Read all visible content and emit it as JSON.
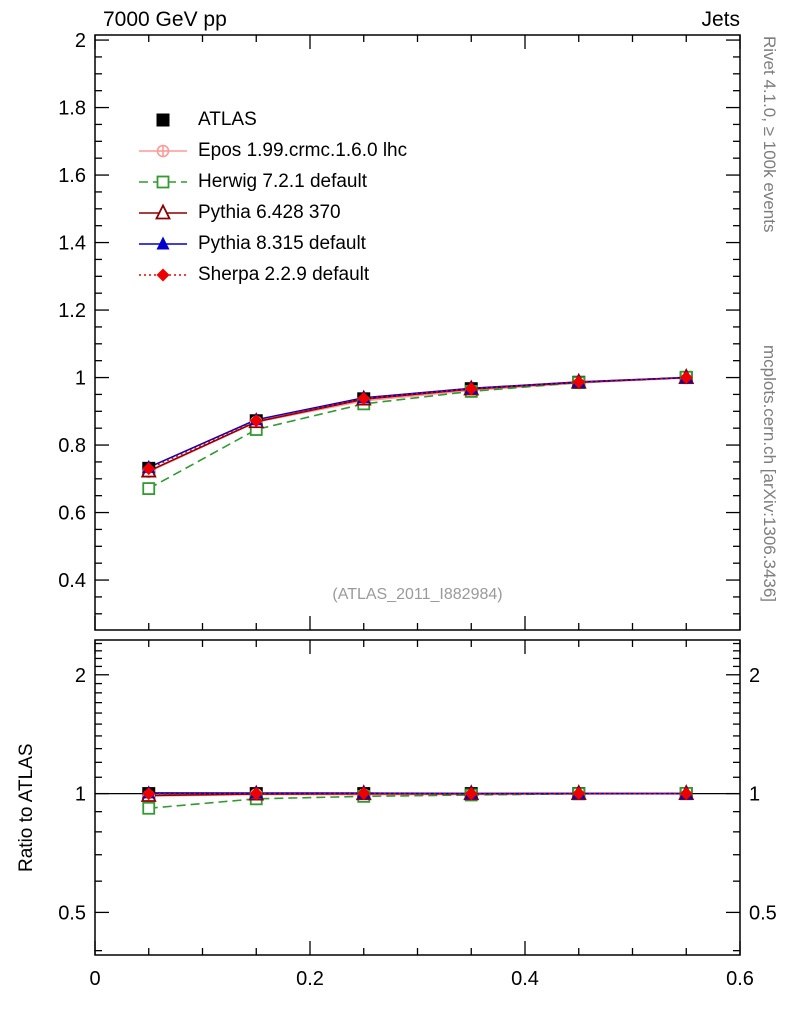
{
  "header": {
    "left_title": "7000 GeV pp",
    "right_title": "Jets"
  },
  "side_labels": {
    "top": "Rivet 4.1.0, ≥ 100k events",
    "bottom": "mcplots.cern.ch [arXiv:1306.3436]"
  },
  "watermark": "(ATLAS_2011_I882984)",
  "chart_data": {
    "type": "line",
    "x": [
      0.05,
      0.15,
      0.25,
      0.35,
      0.45,
      0.55
    ],
    "xlim": [
      0,
      0.6
    ],
    "xticks": [
      0,
      0.2,
      0.4,
      0.6
    ],
    "xtick_labels": [
      "0",
      "0.2",
      "0.4",
      "0.6"
    ],
    "x_minor_step": 0.05,
    "grid": "off",
    "legend_position": "upper-left",
    "main_panel": {
      "ylim": [
        0.252,
        2.015
      ],
      "yticks": [
        0.4,
        0.6,
        0.8,
        1.0,
        1.2,
        1.4,
        1.6,
        1.8,
        2.0
      ],
      "ytick_labels": [
        "0.4",
        "0.6",
        "0.8",
        "1",
        "1.2",
        "1.4",
        "1.6",
        "1.8",
        "2"
      ],
      "y_minor_step": 0.05
    },
    "ratio_panel": {
      "ylabel": "Ratio to ATLAS",
      "yscale": "log",
      "ylim": [
        0.39,
        2.45
      ],
      "yticks": [
        0.5,
        1,
        2
      ],
      "ytick_labels": [
        "0.5",
        "1",
        "2"
      ],
      "y_minors": [
        0.4,
        0.6,
        0.7,
        0.8,
        0.9,
        1.1,
        1.2,
        1.3,
        1.4,
        1.5,
        1.6,
        1.7,
        1.8,
        1.9,
        2.1,
        2.2,
        2.3,
        2.4
      ],
      "reference_line": 1.0
    },
    "series": [
      {
        "name": "ATLAS",
        "color": "#000000",
        "marker": "square-filled",
        "line": "none",
        "values": [
          0.731,
          0.872,
          0.937,
          0.967,
          0.986,
          1.0
        ],
        "ratio": [
          1.0,
          1.0,
          1.0,
          1.0,
          1.0,
          1.0
        ]
      },
      {
        "name": "Epos 1.99.crmc.1.6.0 lhc",
        "color": "#ff9999",
        "marker": "circle-plus-open",
        "line": "solid",
        "values": [
          0.721,
          0.868,
          0.931,
          0.962,
          0.984,
          0.999
        ],
        "ratio": [
          0.986,
          0.995,
          0.994,
          0.995,
          0.998,
          0.999
        ]
      },
      {
        "name": "Herwig 7.2.1 default",
        "color": "#339933",
        "marker": "square-open",
        "line": "dashed",
        "values": [
          0.671,
          0.846,
          0.922,
          0.959,
          0.985,
          1.001
        ],
        "ratio": [
          0.918,
          0.97,
          0.984,
          0.992,
          0.999,
          1.001
        ]
      },
      {
        "name": "Pythia 6.428 370",
        "color": "#8b0000",
        "marker": "triangle-open",
        "line": "solid",
        "values": [
          0.723,
          0.869,
          0.936,
          0.966,
          0.986,
          1.0
        ],
        "ratio": [
          0.989,
          0.997,
          0.999,
          0.999,
          1.0,
          1.0
        ]
      },
      {
        "name": "Pythia 8.315 default",
        "color": "#0000cc",
        "marker": "triangle-filled",
        "line": "solid",
        "values": [
          0.734,
          0.875,
          0.94,
          0.968,
          0.987,
          1.0
        ],
        "ratio": [
          1.004,
          1.003,
          1.003,
          1.001,
          1.001,
          1.0
        ]
      },
      {
        "name": "Sherpa 2.2.9 default",
        "color": "#ee0000",
        "marker": "diamond-filled",
        "line": "dotted",
        "values": [
          0.73,
          0.872,
          0.938,
          0.967,
          0.987,
          1.0
        ],
        "ratio": [
          0.999,
          1.0,
          1.001,
          1.0,
          1.001,
          1.0
        ]
      }
    ]
  }
}
